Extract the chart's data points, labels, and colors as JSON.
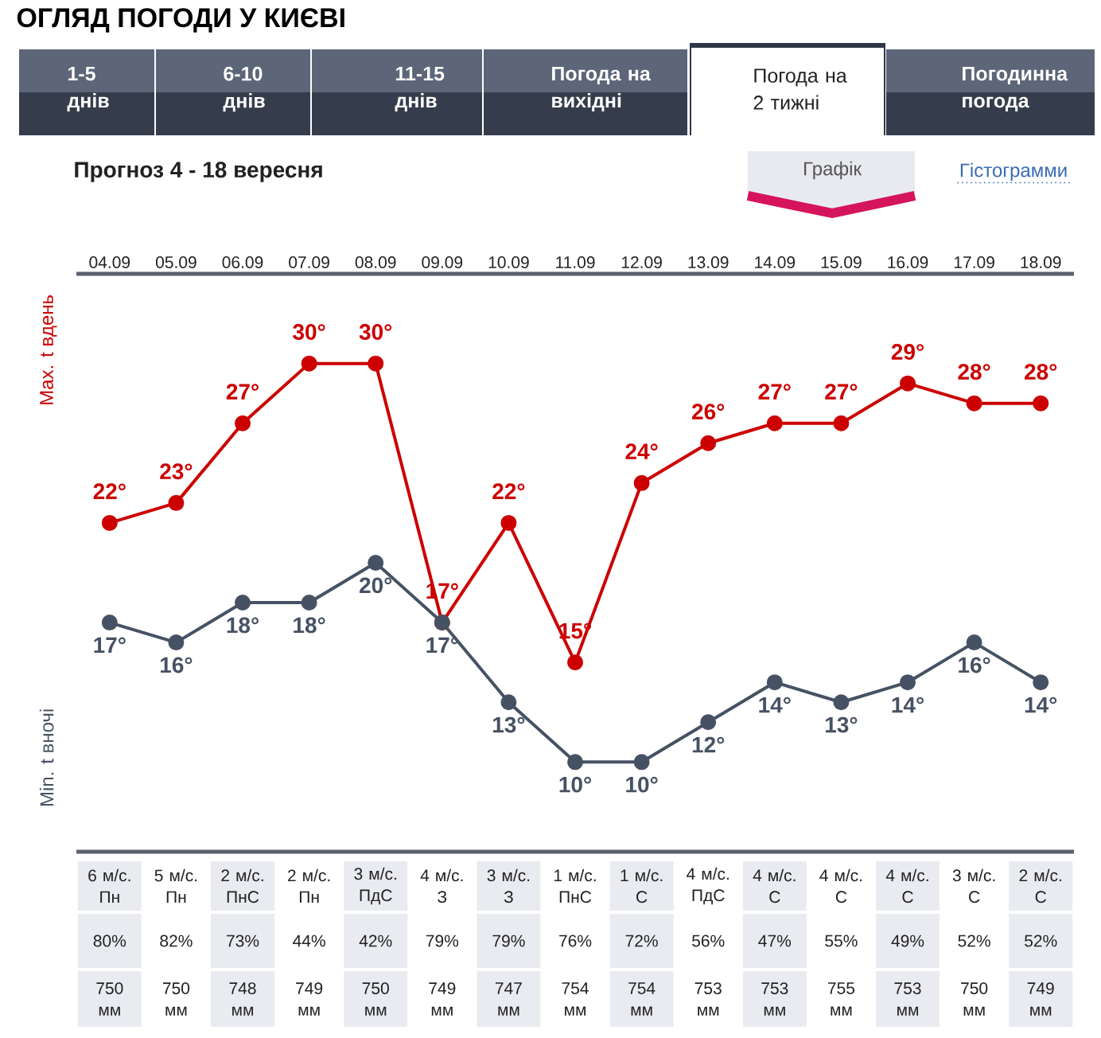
{
  "chart_data": [
    {
      "type": "line",
      "title": "ОГЛЯД ПОГОДИ У КИЄВІ",
      "subtitle": "Прогноз 4 - 18 вересня",
      "annotations": [
        "1-5 днів",
        "6-10 днів",
        "11-15 днів",
        "Погода на вихідні",
        "Погода на 2 тижні",
        "Погодинна погода",
        "Графік",
        "Гістограмми"
      ],
      "categories": [
        "04.09",
        "05.09",
        "06.09",
        "07.09",
        "08.09",
        "09.09",
        "10.09",
        "11.09",
        "12.09",
        "13.09",
        "14.09",
        "15.09",
        "16.09",
        "17.09",
        "18.09"
      ],
      "series": [
        {
          "name": "Max. t вдень",
          "color": "#cc0000",
          "values": [
            22,
            23,
            27,
            30,
            30,
            17,
            22,
            15,
            24,
            26,
            27,
            27,
            29,
            28,
            28
          ],
          "value_labels": [
            "22°",
            "23°",
            "27°",
            "30°",
            "30°",
            "17°",
            "22°",
            "15°",
            "24°",
            "26°",
            "27°",
            "27°",
            "29°",
            "28°",
            "28°"
          ]
        },
        {
          "name": "Min. t вночі",
          "color": "#465264",
          "values": [
            17,
            16,
            18,
            18,
            20,
            17,
            13,
            10,
            10,
            12,
            14,
            13,
            14,
            16,
            14
          ],
          "value_labels": [
            "17°",
            "16°",
            "18°",
            "18°",
            "20°",
            "17°",
            "13°",
            "10°",
            "10°",
            "12°",
            "14°",
            "13°",
            "14°",
            "16°",
            "14°"
          ]
        }
      ],
      "marker": "circle",
      "line_style": "solid",
      "legend": "left",
      "tick_labels": "x"
    },
    {
      "type": "other",
      "annotations": [
        "6 м/с. Пн",
        "5 м/с. Пн",
        "2 м/с. ПнС",
        "2 м/с. Пн",
        "3 м/с. ПдС",
        "4 м/с. З",
        "3 м/с. З",
        "1 м/с. ПнС",
        "1 м/с. С",
        "4 м/с. ПдС",
        "4 м/с. С",
        "4 м/с. С",
        "4 м/с. С",
        "3 м/с. С",
        "2 м/с. С",
        "80%",
        "82%",
        "73%",
        "44%",
        "42%",
        "79%",
        "79%",
        "76%",
        "72%",
        "56%",
        "47%",
        "55%",
        "49%",
        "52%",
        "52%",
        "750 мм",
        "750 мм",
        "748 мм",
        "749 мм",
        "750 мм",
        "749 мм",
        "747 мм",
        "754 мм",
        "754 мм",
        "753 мм",
        "753 мм",
        "755 мм",
        "753 мм",
        "750 мм",
        "749 мм"
      ]
    }
  ]
}
